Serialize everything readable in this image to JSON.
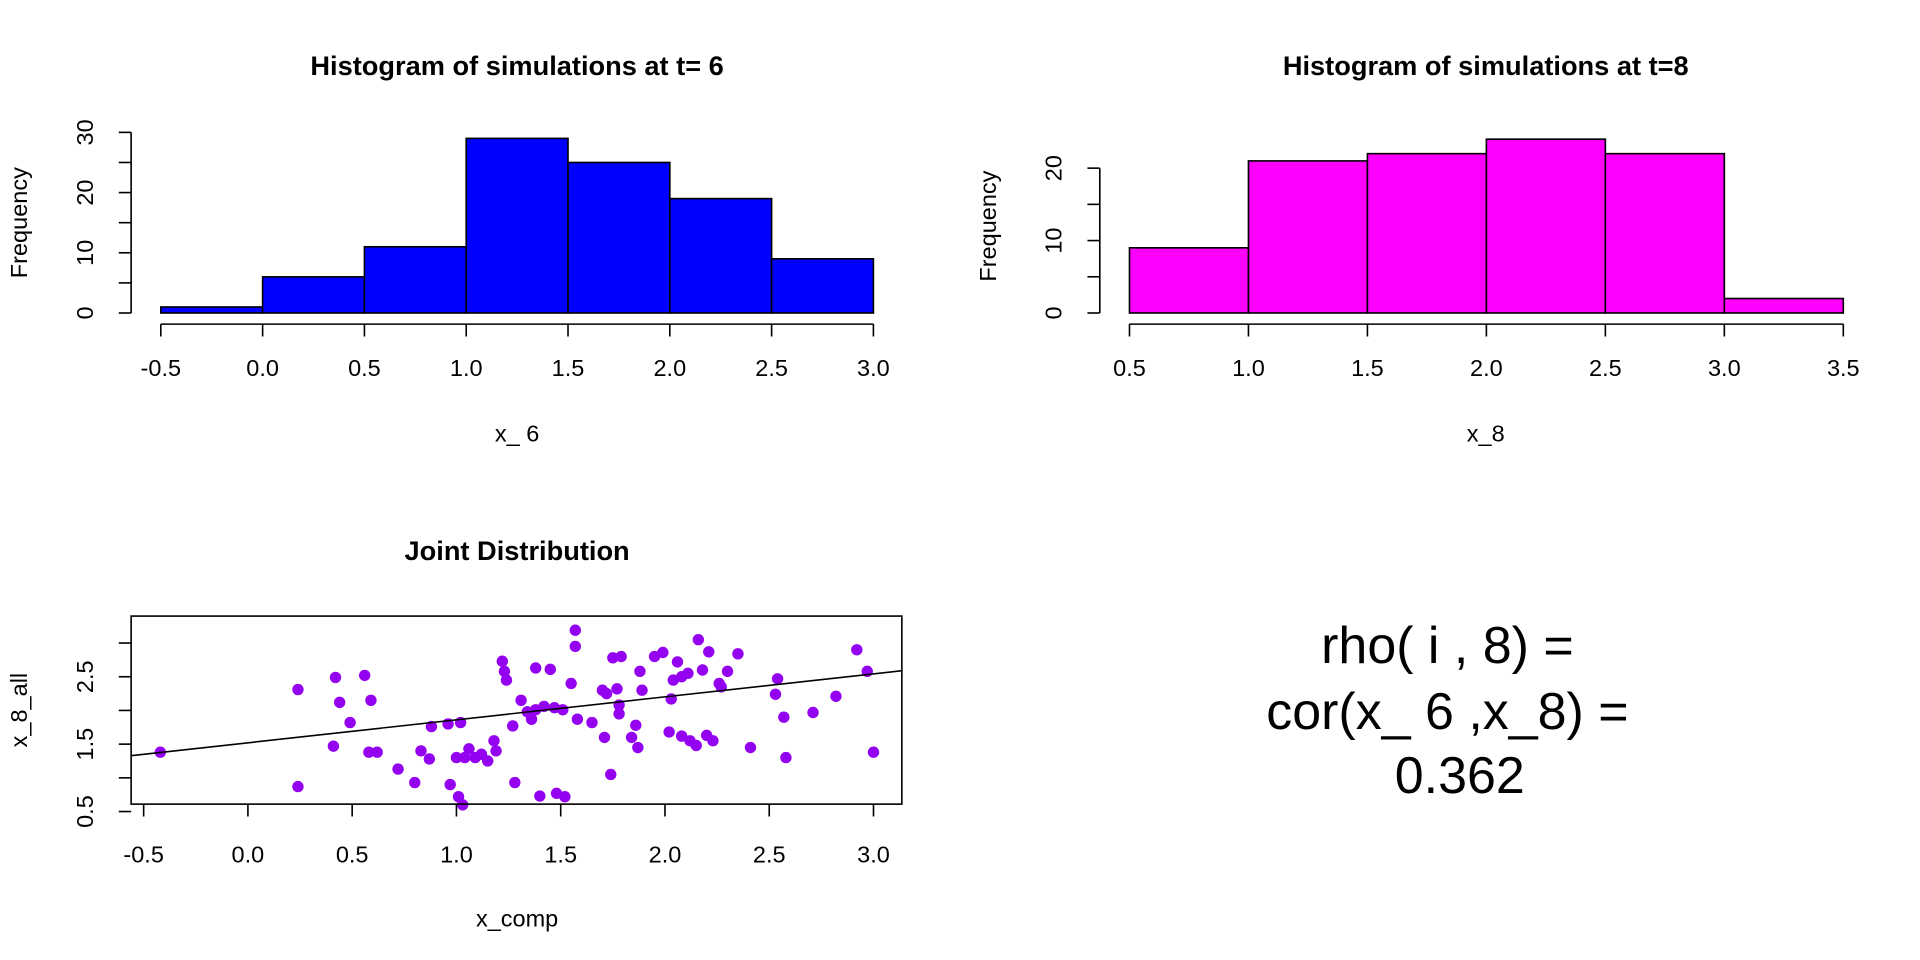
{
  "chart_data": [
    {
      "type": "histogram",
      "title": "Histogram of simulations at t= 6",
      "xlabel": "x_ 6",
      "ylabel": "Frequency",
      "color": "#0000ff",
      "bins": [
        -0.5,
        0.0,
        0.5,
        1.0,
        1.5,
        2.0,
        2.5,
        3.0
      ],
      "values": [
        1,
        6,
        11,
        29,
        25,
        19,
        9
      ],
      "xlim": [
        -0.5,
        3.0
      ],
      "xticks": [
        {
          "value": -0.5,
          "label": "-0.5"
        },
        {
          "value": 0,
          "label": "0.0"
        },
        {
          "value": 0.5,
          "label": "0.5"
        },
        {
          "value": 1,
          "label": "1.0"
        },
        {
          "value": 1.5,
          "label": "1.5"
        },
        {
          "value": 2,
          "label": "2.0"
        },
        {
          "value": 2.5,
          "label": "2.5"
        },
        {
          "value": 3,
          "label": "3.0"
        }
      ],
      "ylim": [
        0,
        30
      ],
      "yticks": [
        0,
        10,
        20,
        30
      ],
      "y_minor_ticks": [
        5,
        15,
        25
      ]
    },
    {
      "type": "histogram",
      "title": "Histogram of simulations at t=8",
      "xlabel": "x_8",
      "ylabel": "Frequency",
      "color": "#ff00ff",
      "bins": [
        0.5,
        1.0,
        1.5,
        2.0,
        2.5,
        3.0,
        3.5
      ],
      "values": [
        9,
        21,
        22,
        24,
        22,
        2
      ],
      "xlim": [
        0.5,
        3.5
      ],
      "xticks": [
        0.5,
        {
          "value": 1,
          "label": "1.0"
        },
        1.5,
        {
          "value": 2,
          "label": "2.0"
        },
        2.5,
        {
          "value": 3,
          "label": "3.0"
        },
        3.5
      ],
      "ylim": [
        0,
        24
      ],
      "yticks": [
        0,
        10,
        20
      ],
      "y_minor_ticks": [
        5,
        15
      ]
    },
    {
      "type": "scatter",
      "title": "Joint Distribution",
      "xlabel": "x_comp",
      "ylabel": "x_8_all",
      "color": "#9400f0",
      "x": [
        -0.42,
        0.24,
        0.24,
        0.41,
        0.42,
        0.44,
        0.49,
        0.56,
        0.58,
        0.59,
        0.62,
        0.72,
        0.8,
        0.83,
        0.87,
        0.88,
        0.96,
        0.97,
        1.0,
        1.01,
        1.02,
        1.03,
        1.04,
        1.06,
        1.09,
        1.12,
        1.15,
        1.18,
        1.19,
        1.22,
        1.23,
        1.24,
        1.27,
        1.28,
        1.31,
        1.34,
        1.36,
        1.38,
        1.38,
        1.4,
        1.42,
        1.45,
        1.47,
        1.48,
        1.51,
        1.52,
        1.55,
        1.57,
        1.57,
        1.58,
        1.65,
        1.7,
        1.71,
        1.72,
        1.74,
        1.75,
        1.77,
        1.78,
        1.78,
        1.79,
        1.84,
        1.86,
        1.87,
        1.88,
        1.89,
        1.95,
        1.99,
        2.02,
        2.03,
        2.04,
        2.06,
        2.08,
        2.08,
        2.11,
        2.12,
        2.15,
        2.16,
        2.18,
        2.2,
        2.21,
        2.23,
        2.26,
        2.27,
        2.3,
        2.35,
        2.41,
        2.53,
        2.54,
        2.57,
        2.58,
        2.71,
        2.82,
        2.92,
        2.97,
        3.0
      ],
      "y": [
        1.38,
        0.87,
        2.31,
        1.47,
        2.49,
        2.12,
        1.82,
        2.52,
        1.38,
        2.15,
        1.38,
        1.13,
        0.93,
        1.4,
        1.28,
        1.76,
        1.8,
        0.9,
        1.3,
        0.72,
        1.82,
        0.6,
        1.3,
        1.43,
        1.3,
        1.35,
        1.25,
        1.55,
        1.4,
        2.73,
        2.58,
        2.45,
        1.77,
        0.93,
        2.15,
        1.98,
        1.87,
        2.01,
        2.63,
        0.73,
        2.06,
        2.61,
        2.04,
        0.77,
        2.01,
        0.72,
        2.4,
        2.95,
        3.19,
        1.87,
        1.82,
        2.3,
        1.6,
        2.25,
        1.05,
        2.78,
        2.32,
        2.08,
        1.95,
        2.8,
        1.6,
        1.78,
        1.45,
        2.58,
        2.3,
        2.8,
        2.86,
        1.68,
        2.17,
        2.45,
        2.72,
        2.5,
        1.62,
        2.55,
        1.55,
        1.48,
        3.05,
        2.6,
        1.63,
        2.87,
        1.55,
        2.4,
        2.35,
        2.58,
        2.84,
        1.45,
        2.24,
        2.47,
        1.9,
        1.3,
        1.97,
        2.21,
        2.9,
        2.58,
        1.38
      ],
      "regression": {
        "intercept": 1.52,
        "slope": 0.341,
        "color": "#000000"
      },
      "xlim": [
        -0.56,
        3.136
      ],
      "xticks": [
        {
          "value": -0.5,
          "label": "-0.5"
        },
        {
          "value": 0,
          "label": "0.0"
        },
        {
          "value": 0.5,
          "label": "0.5"
        },
        {
          "value": 1,
          "label": "1.0"
        },
        {
          "value": 1.5,
          "label": "1.5"
        },
        {
          "value": 2,
          "label": "2.0"
        },
        {
          "value": 2.5,
          "label": "2.5"
        },
        {
          "value": 3,
          "label": "3.0"
        }
      ],
      "ylim": [
        0.61,
        3.4
      ],
      "yticks": [
        0.5,
        1.5,
        2.5
      ],
      "y_minor_ticks": [
        1,
        2,
        3
      ]
    }
  ],
  "annotation": {
    "lines": [
      "rho( i , 8) =",
      "cor(x_ 6 ,x_8) =",
      "0.362"
    ]
  }
}
